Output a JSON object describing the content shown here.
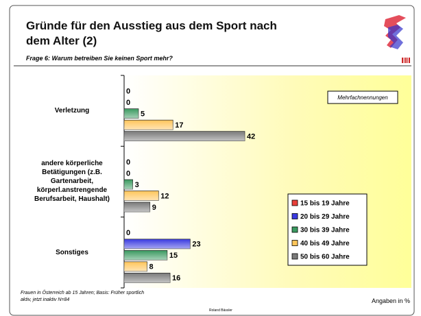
{
  "chart_data": {
    "type": "hbar",
    "title": "Gründe für den Ausstieg aus dem Sport nach dem Alter (2)",
    "subtitle": "Frage 6: Warum betreiben Sie keinen Sport mehr?",
    "annotation": "Mehrfachnennungen",
    "categories": [
      "Verletzung",
      "andere körperliche Betätigungen (z.B. Gartenarbeit, körperl.anstrengende Berufsarbeit, Haushalt)",
      "Sonstiges"
    ],
    "series": [
      {
        "name": "15 bis 19 Jahre",
        "color": "#e8403a",
        "values": [
          0,
          0,
          0
        ]
      },
      {
        "name": "20 bis 29 Jahre",
        "color": "#3a3ae0",
        "values": [
          0,
          0,
          23
        ]
      },
      {
        "name": "30 bis 39 Jahre",
        "color": "#3a9a60",
        "values": [
          5,
          3,
          15
        ]
      },
      {
        "name": "40 bis 49 Jahre",
        "color": "#ffc55a",
        "values": [
          17,
          12,
          8
        ]
      },
      {
        "name": "50 bis 60 Jahre",
        "color": "#7a7a7a",
        "values": [
          42,
          9,
          16
        ]
      }
    ],
    "xlim": [
      0,
      100
    ],
    "unit_note": "Angaben in %",
    "footnote": "Frauen in Österreich ab 15 Jahren; Basis: Früher sportlich aktiv, jetzt inaktiv N=84",
    "author": "Roland Bässler"
  }
}
